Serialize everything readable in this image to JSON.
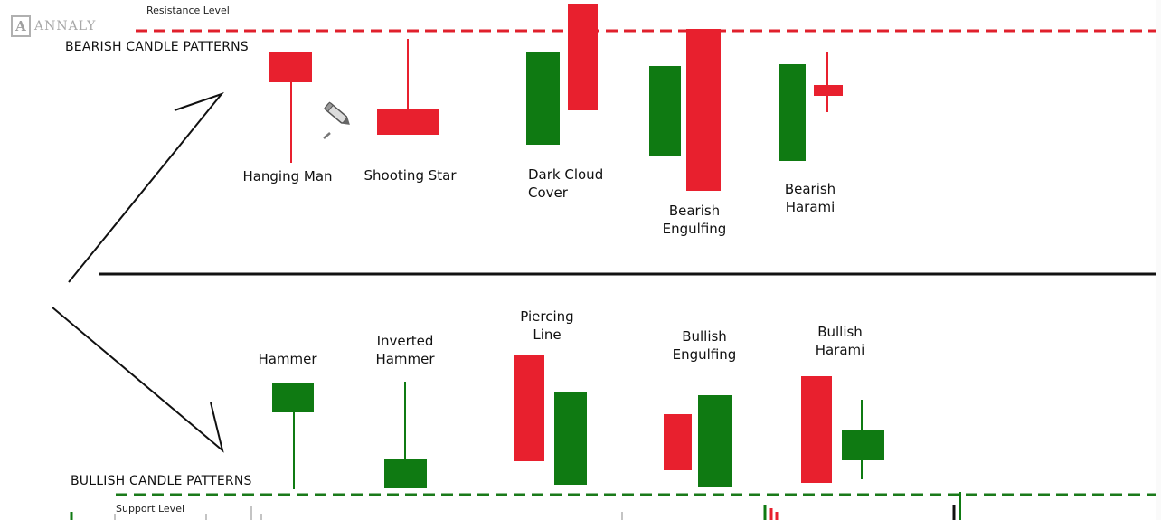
{
  "logo": {
    "text": "ANNALY",
    "icon": "annaly-logo-icon"
  },
  "resistance": {
    "label": "Resistance Level",
    "color": "#e0202c"
  },
  "support": {
    "label": "Support Level",
    "color": "#1a7a1a"
  },
  "bearish": {
    "title": "BEARISH CANDLE PATTERNS",
    "patterns": [
      {
        "id": "hanging-man",
        "label_lines": [
          "Hanging Man"
        ]
      },
      {
        "id": "shooting-star",
        "label_lines": [
          "Shooting Star"
        ]
      },
      {
        "id": "dark-cloud-cover",
        "label_lines": [
          "Dark Cloud",
          "Cover"
        ]
      },
      {
        "id": "bearish-engulfing",
        "label_lines": [
          "Bearish",
          "Engulfing"
        ]
      },
      {
        "id": "bearish-harami",
        "label_lines": [
          "Bearish",
          "Harami"
        ]
      }
    ]
  },
  "bullish": {
    "title": "BULLISH CANDLE PATTERNS",
    "patterns": [
      {
        "id": "hammer",
        "label_lines": [
          "Hammer"
        ]
      },
      {
        "id": "inverted-hammer",
        "label_lines": [
          "Inverted",
          "Hammer"
        ]
      },
      {
        "id": "piercing-line",
        "label_lines": [
          "Piercing",
          "Line"
        ]
      },
      {
        "id": "bullish-engulfing",
        "label_lines": [
          "Bullish",
          "Engulfing"
        ]
      },
      {
        "id": "bullish-harami",
        "label_lines": [
          "Bullish",
          "Harami"
        ]
      }
    ]
  },
  "colors": {
    "bear": "#e8202e",
    "bull": "#0f7a12",
    "divider": "#111111",
    "arrow": "#111111"
  },
  "icons": {
    "pen": "pen-annotation-icon"
  }
}
